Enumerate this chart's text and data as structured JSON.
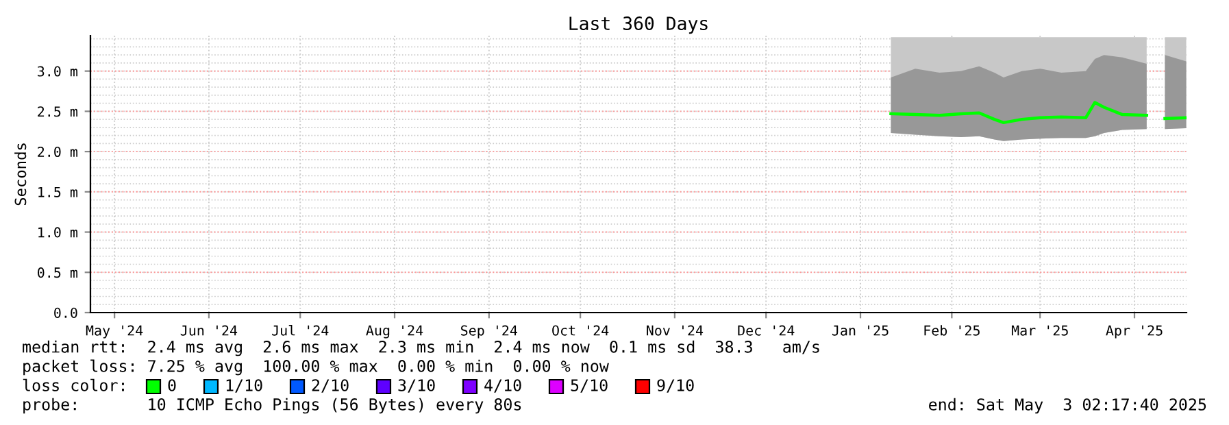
{
  "chart_data": {
    "type": "line",
    "title": "Last 360 Days",
    "ylabel": "Seconds",
    "x": [
      "2025-01-26",
      "2025-02-03",
      "2025-02-11",
      "2025-02-18",
      "2025-02-24",
      "2025-03-01",
      "2025-03-04",
      "2025-03-10",
      "2025-03-16",
      "2025-03-23",
      "2025-03-31",
      "2025-04-03",
      "2025-04-06",
      "2025-04-12",
      "2025-04-20",
      "2025-04-21",
      "2025-04-26",
      "2025-05-03"
    ],
    "series": [
      {
        "type": "area",
        "color": "#c8c8c8",
        "values": [
          3.42,
          3.42,
          3.42,
          3.42,
          3.42,
          3.42,
          3.42,
          3.42,
          3.42,
          3.42,
          3.42,
          3.42,
          3.42,
          3.42,
          3.42,
          null,
          3.42,
          3.42
        ]
      },
      {
        "name": "0",
        "color": "#00ff00",
        "values": [
          2.47,
          2.46,
          2.45,
          2.47,
          2.48,
          2.4,
          2.36,
          2.4,
          2.42,
          2.43,
          2.42,
          2.61,
          2.55,
          2.46,
          2.45,
          null,
          2.41,
          2.42
        ],
        "lower": [
          2.23,
          2.21,
          2.19,
          2.18,
          2.19,
          2.15,
          2.13,
          2.15,
          2.16,
          2.17,
          2.17,
          2.19,
          2.23,
          2.27,
          2.28,
          null,
          2.28,
          2.29
        ],
        "upper": [
          2.92,
          3.03,
          2.98,
          3.0,
          3.06,
          2.98,
          2.92,
          3.0,
          3.03,
          2.98,
          3.0,
          3.15,
          3.2,
          3.17,
          3.09,
          null,
          3.2,
          3.12
        ]
      },
      {
        "name": "1/10",
        "color": "#00b8ff",
        "values": [
          null,
          null,
          null,
          null,
          null,
          null,
          null,
          null,
          null,
          null,
          null,
          null,
          null,
          null,
          null,
          null,
          null,
          null
        ]
      },
      {
        "name": "2/10",
        "color": "#0059ff",
        "values": [
          null,
          null,
          null,
          null,
          null,
          null,
          null,
          null,
          null,
          null,
          null,
          null,
          null,
          null,
          null,
          null,
          null,
          null
        ]
      },
      {
        "name": "3/10",
        "color": "#5e00ff",
        "values": [
          null,
          null,
          null,
          null,
          null,
          null,
          null,
          null,
          null,
          null,
          null,
          null,
          null,
          null,
          null,
          null,
          null,
          null
        ]
      },
      {
        "name": "4/10",
        "color": "#7e00ff",
        "values": [
          null,
          null,
          null,
          null,
          null,
          null,
          null,
          null,
          null,
          null,
          null,
          null,
          null,
          null,
          null,
          null,
          null,
          null
        ]
      },
      {
        "name": "5/10",
        "color": "#dd00ff",
        "values": [
          null,
          null,
          null,
          null,
          null,
          null,
          null,
          null,
          null,
          null,
          null,
          null,
          null,
          null,
          null,
          null,
          null,
          null
        ]
      },
      {
        "name": "9/10",
        "color": "#ff0000",
        "values": [
          null,
          null,
          null,
          null,
          null,
          null,
          null,
          null,
          null,
          null,
          null,
          null,
          null,
          null,
          null,
          null,
          null,
          null
        ]
      }
    ],
    "xlim": [
      "2024-05-08T02:17",
      "2025-05-03T02:17"
    ],
    "xticks": [
      {
        "value": "2024-05-16",
        "label": "May '24"
      },
      {
        "value": "2024-06-16",
        "label": "Jun '24"
      },
      {
        "value": "2024-07-16",
        "label": "Jul '24"
      },
      {
        "value": "2024-08-16",
        "label": "Aug '24"
      },
      {
        "value": "2024-09-16",
        "label": "Sep '24"
      },
      {
        "value": "2024-10-16",
        "label": "Oct '24"
      },
      {
        "value": "2024-11-16",
        "label": "Nov '24"
      },
      {
        "value": "2024-12-16",
        "label": "Dec '24"
      },
      {
        "value": "2025-01-16",
        "label": "Jan '25"
      },
      {
        "value": "2025-02-15",
        "label": "Feb '25"
      },
      {
        "value": "2025-03-16",
        "label": "Mar '25"
      },
      {
        "value": "2025-04-16",
        "label": "Apr '25"
      }
    ],
    "ylim": [
      0,
      3.44
    ],
    "yticks": [
      {
        "value": 0,
        "label": "0.0"
      },
      {
        "value": 0.5,
        "label": "0.5 m"
      },
      {
        "value": 1.0,
        "label": "1.0 m"
      },
      {
        "value": 1.5,
        "label": "1.5 m"
      },
      {
        "value": 2.0,
        "label": "2.0 m"
      },
      {
        "value": 2.5,
        "label": "2.5 m"
      },
      {
        "value": 3.0,
        "label": "3.0 m"
      }
    ],
    "grid": true,
    "legend": "bottom",
    "legend_title": "loss color:",
    "annotations": [
      "median rtt:  2.4 ms avg  2.6 ms max  2.3 ms min  2.4 ms now  0.1 ms sd  38.3   am/s",
      "packet loss: 7.25 % avg  100.00 % max  0.00 % min  0.00 % now",
      "probe:       10 ICMP Echo Pings (56 Bytes) every 80s",
      "end: Sat May  3 02:17:40 2025"
    ]
  }
}
